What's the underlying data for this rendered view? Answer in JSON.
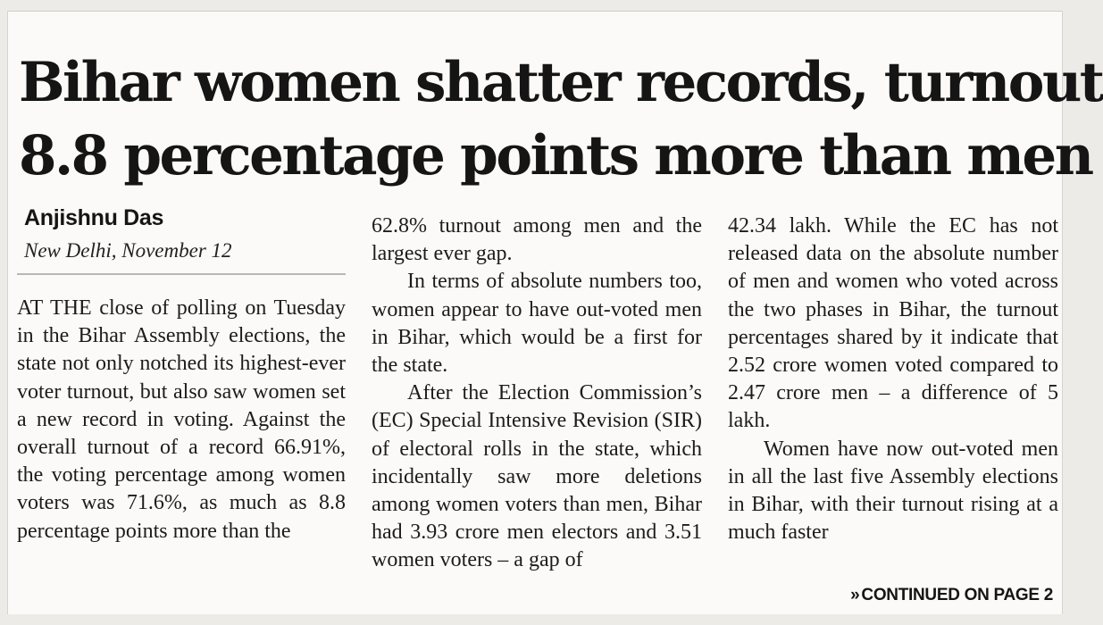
{
  "article": {
    "headline_line1": "Bihar women shatter records, turnout",
    "headline_line2": "8.8 percentage points more than men",
    "author": "Anjishnu Das",
    "dateline": "New Delhi, November 12",
    "col1_p1": "AT THE close of polling on Tuesday in the Bihar Assembly elections, the state not only notched its highest-ever voter turnout, but also saw women set a new record in voting. Against the overall turnout of a record 66.91%, the voting percentage among women voters was 71.6%, as much as 8.8 percentage points more than the",
    "col2_p1": "62.8% turnout among men and the largest ever gap.",
    "col2_p2": "In terms of absolute numbers too, women appear to have out-voted men in Bihar, which would be a first for the state.",
    "col2_p3": "After the Election Commission’s (EC) Special Intensive Revision (SIR) of electoral rolls in the state, which incidentally saw more deletions among women voters than men, Bihar had 3.93 crore men electors and 3.51 women voters – a gap of",
    "col3_p1": "42.34 lakh. While the EC has not released data on the absolute number of men and women who voted across the two phases in Bihar, the turnout percentages shared by it indicate that 2.52 crore women voted compared to 2.47 crore men – a difference of 5 lakh.",
    "col3_p2": "Women have now out-voted men in all the last five Assembly elections in Bihar, with their turnout rising at a much faster",
    "continued_arrow": "»",
    "continued_label": "CONTINUED ON PAGE 2"
  }
}
